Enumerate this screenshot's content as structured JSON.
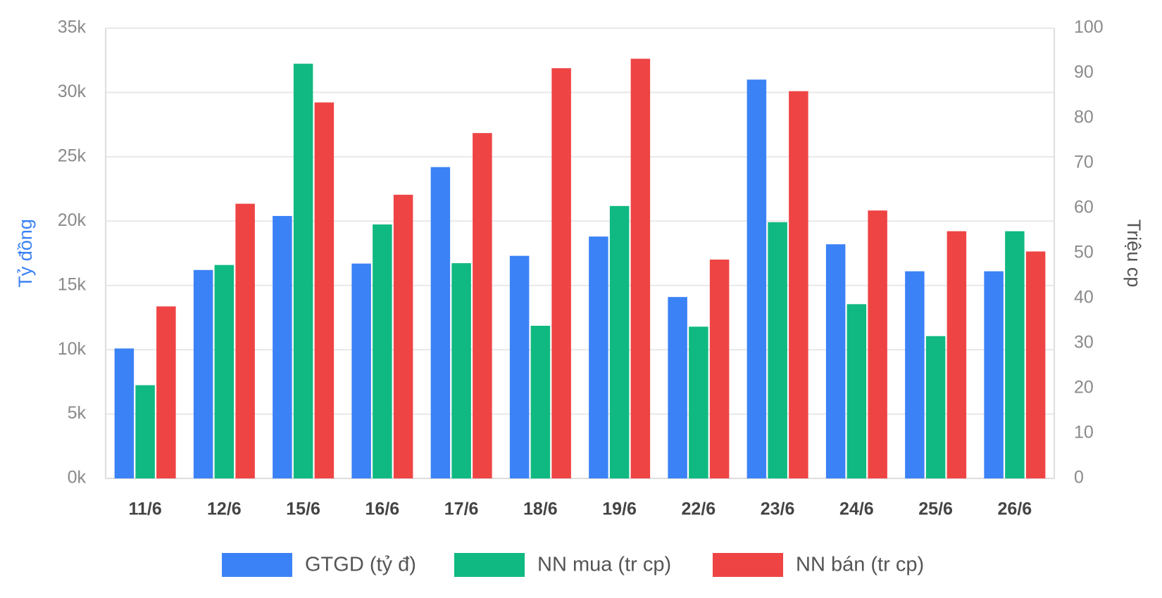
{
  "chart_data": {
    "type": "bar",
    "categories": [
      "11/6",
      "12/6",
      "15/6",
      "16/6",
      "17/6",
      "18/6",
      "19/6",
      "22/6",
      "23/6",
      "24/6",
      "25/6",
      "26/6"
    ],
    "ylabel": "Tỷ đồng",
    "y2label": "Triệu cp",
    "ylim": [
      0,
      35000
    ],
    "yticks": [
      {
        "value": 0,
        "label": "0k"
      },
      {
        "value": 5000,
        "label": "5k"
      },
      {
        "value": 10000,
        "label": "10k"
      },
      {
        "value": 15000,
        "label": "15k"
      },
      {
        "value": 20000,
        "label": "20k"
      },
      {
        "value": 25000,
        "label": "25k"
      },
      {
        "value": 30000,
        "label": "30k"
      },
      {
        "value": 35000,
        "label": "35k"
      }
    ],
    "y2lim": [
      0,
      100
    ],
    "y2ticks": [
      0,
      10,
      20,
      30,
      40,
      50,
      60,
      70,
      80,
      90,
      100
    ],
    "grid": true,
    "legend": "bottom",
    "series": [
      {
        "name": "GTGD (tỷ đ)",
        "color": "#3b82f6",
        "values": [
          10100,
          16200,
          20400,
          16700,
          24200,
          17300,
          18800,
          14100,
          31000,
          18200,
          16100,
          16100
        ]
      },
      {
        "name": "NN mua (tr cp)",
        "color": "#10b981",
        "axis": "y2",
        "values": [
          20.7,
          47.4,
          92.1,
          56.4,
          47.8,
          33.9,
          60.5,
          33.7,
          56.9,
          38.7,
          31.6,
          54.9
        ]
      },
      {
        "name": "NN bán (tr cp)",
        "color": "#ef4444",
        "axis": "y2",
        "values": [
          38.2,
          61,
          83.5,
          63,
          76.7,
          91.1,
          93.2,
          48.6,
          86,
          59.5,
          54.9,
          50.4
        ]
      }
    ]
  }
}
